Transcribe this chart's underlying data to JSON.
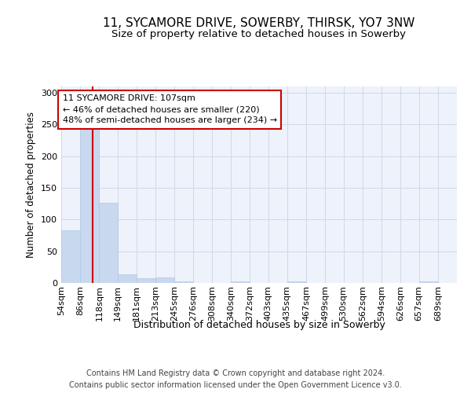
{
  "title1": "11, SYCAMORE DRIVE, SOWERBY, THIRSK, YO7 3NW",
  "title2": "Size of property relative to detached houses in Sowerby",
  "xlabel": "Distribution of detached houses by size in Sowerby",
  "ylabel": "Number of detached properties",
  "bin_labels": [
    "54sqm",
    "86sqm",
    "118sqm",
    "149sqm",
    "181sqm",
    "213sqm",
    "245sqm",
    "276sqm",
    "308sqm",
    "340sqm",
    "372sqm",
    "403sqm",
    "435sqm",
    "467sqm",
    "499sqm",
    "530sqm",
    "562sqm",
    "594sqm",
    "626sqm",
    "657sqm",
    "689sqm"
  ],
  "bin_edges": [
    54,
    86,
    118,
    149,
    181,
    213,
    245,
    276,
    308,
    340,
    372,
    403,
    435,
    467,
    499,
    530,
    562,
    594,
    626,
    657,
    689,
    721
  ],
  "bar_values": [
    83,
    243,
    127,
    14,
    8,
    9,
    3,
    0,
    0,
    3,
    0,
    0,
    3,
    0,
    0,
    0,
    0,
    0,
    0,
    3,
    0
  ],
  "bar_color": "#c8d8ee",
  "bar_edgecolor": "#b0c8e4",
  "property_size": 107,
  "red_line_color": "#cc0000",
  "annotation_text": "11 SYCAMORE DRIVE: 107sqm\n← 46% of detached houses are smaller (220)\n48% of semi-detached houses are larger (234) →",
  "annotation_box_color": "white",
  "annotation_box_edgecolor": "#cc0000",
  "ylim": [
    0,
    310
  ],
  "yticks": [
    0,
    50,
    100,
    150,
    200,
    250,
    300
  ],
  "background_color": "#eef2fb",
  "footer_text": "Contains HM Land Registry data © Crown copyright and database right 2024.\nContains public sector information licensed under the Open Government Licence v3.0.",
  "grid_color": "#d0d8e8",
  "title1_fontsize": 11,
  "title2_fontsize": 9.5,
  "xlabel_fontsize": 9,
  "ylabel_fontsize": 8.5,
  "tick_fontsize": 8,
  "annotation_fontsize": 8,
  "footer_fontsize": 7
}
